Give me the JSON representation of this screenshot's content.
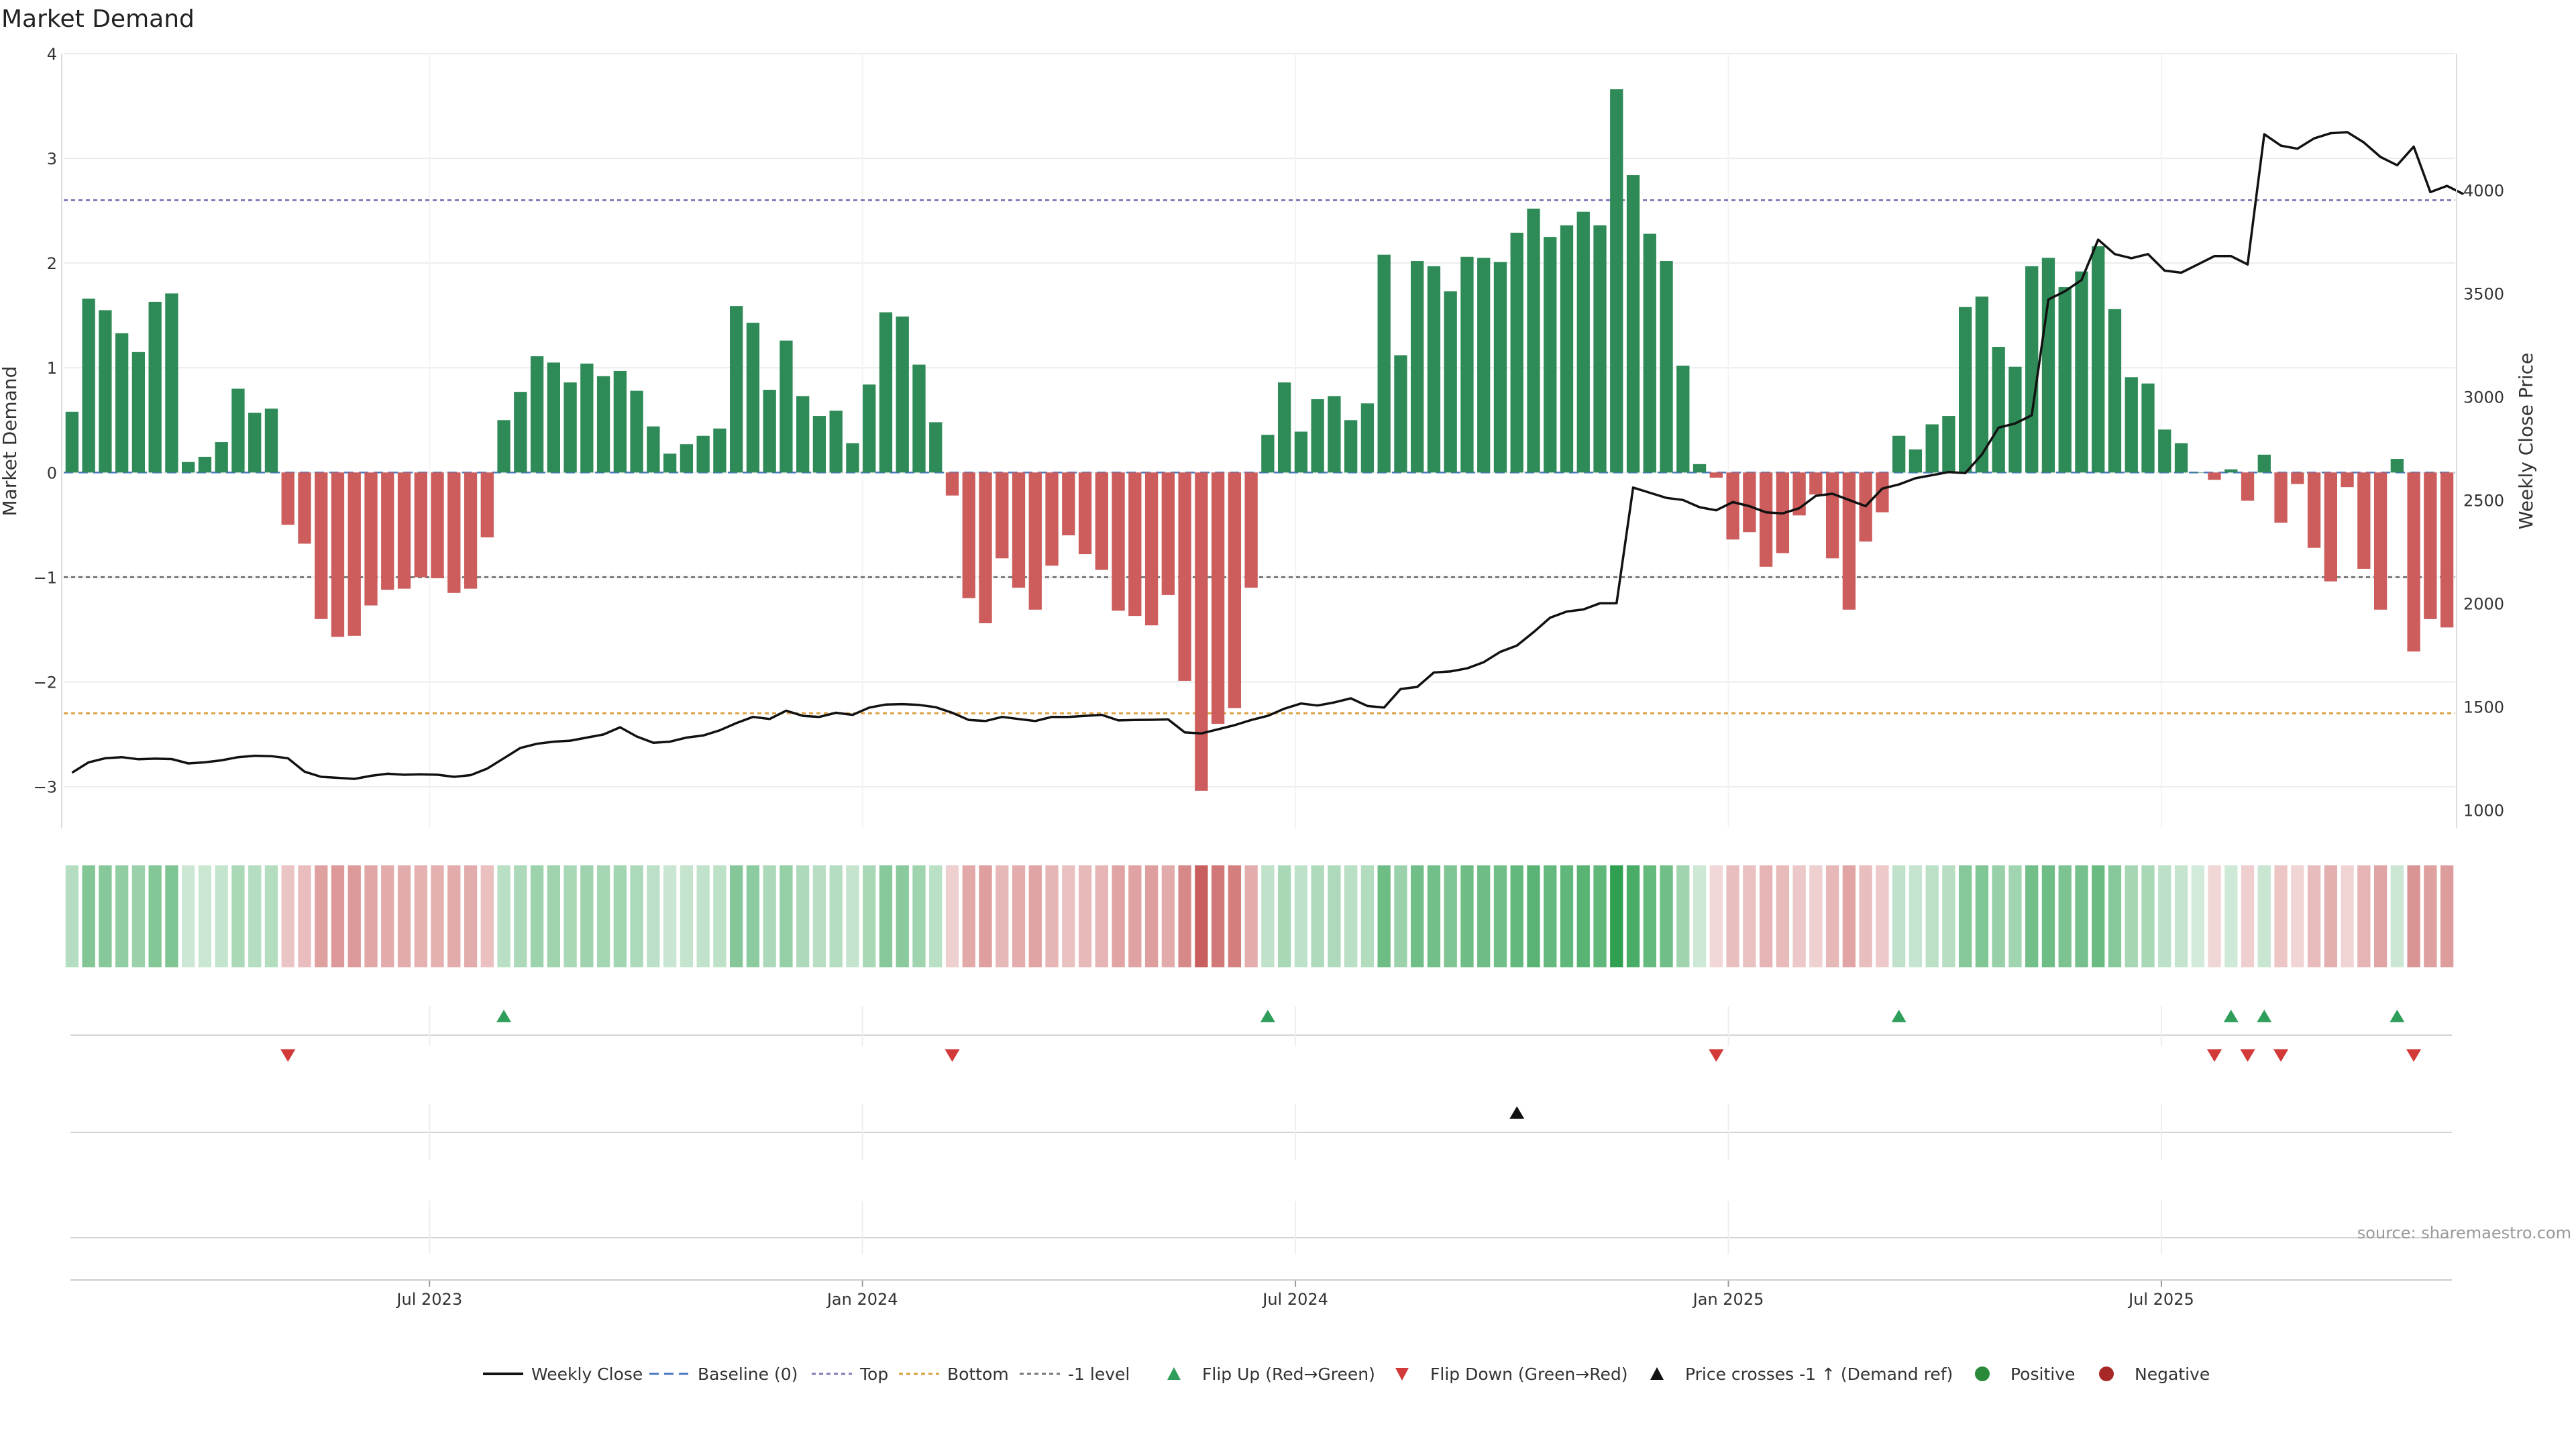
{
  "chart_data": {
    "type": "bar",
    "title": "Market Demand",
    "ylabel": "Market Demand",
    "y2label": "Weekly Close Price",
    "ylim": [
      -3.4,
      4.0
    ],
    "y2lim": [
      910,
      4660
    ],
    "yticks": [
      4,
      3,
      2,
      1,
      0,
      -1,
      -2,
      -3
    ],
    "yticklabels": [
      "4",
      "3",
      "2",
      "1",
      "0",
      "−1",
      "−2",
      "−3"
    ],
    "y2ticks": [
      4000,
      3500,
      3000,
      2500,
      2000,
      1500,
      1000
    ],
    "y2ticklabels": [
      "4000",
      "3500",
      "3000",
      "2500",
      "2000",
      "1500",
      "1000"
    ],
    "xticks": [
      11,
      24,
      37,
      50,
      63
    ],
    "xticklabels": [
      "Jul 2023",
      "Jan 2024",
      "Jul 2024",
      "Jan 2025",
      "Jul 2025"
    ],
    "reference_lines": [
      {
        "name": "Top",
        "value": 2.6,
        "color": "#8a7ab8"
      },
      {
        "name": "-1 level",
        "value": -1.0,
        "color": "#777777"
      },
      {
        "name": "Bottom",
        "value": -2.3,
        "color": "#d9a040"
      }
    ],
    "colors": {
      "positive": "#2e8b57",
      "negative": "#cd5c5c",
      "price_line": "#111111",
      "flip_up": "#2e9e5a",
      "flip_down": "#d23a3a",
      "price_cross": "#111111",
      "positive_dot": "#2a8a3a",
      "negative_dot": "#a82828"
    },
    "series": [
      {
        "name": "Market Demand",
        "values": [
          0.58,
          1.66,
          1.55,
          1.33,
          1.15,
          1.63,
          1.71,
          0.1,
          0.15,
          0.29,
          0.8,
          0.57,
          0.61,
          -0.5,
          -0.68,
          -1.4,
          -1.57,
          -1.56,
          -1.27,
          -1.12,
          -1.11,
          -1.0,
          -1.01,
          -1.15,
          -1.11,
          -0.62,
          0.5,
          0.77,
          1.11,
          1.05,
          0.86,
          1.04,
          0.92,
          0.97,
          0.78,
          0.44,
          0.18,
          0.27,
          0.35,
          0.42,
          1.59,
          1.43,
          0.79,
          1.26,
          0.73,
          0.54,
          0.59,
          0.28,
          0.84,
          1.53,
          1.49,
          1.03,
          0.48,
          -0.22,
          -1.2,
          -1.44,
          -0.82,
          -1.1,
          -1.31,
          -0.89,
          -0.6,
          -0.78,
          -0.93,
          -1.32,
          -1.37,
          -1.46,
          -1.17,
          -1.99,
          -3.04,
          -2.4,
          -2.25,
          -1.1,
          0.36,
          0.86,
          0.39,
          0.7,
          0.73,
          0.5,
          0.66,
          2.08,
          1.12,
          2.02,
          1.97,
          1.73,
          2.06,
          2.05,
          2.01,
          2.29,
          2.52,
          2.25,
          2.36,
          2.49,
          2.36,
          3.66,
          2.84,
          2.28,
          2.02,
          1.02,
          0.08,
          -0.05,
          -0.64,
          -0.57,
          -0.9,
          -0.77,
          -0.41,
          -0.21,
          -0.82,
          -1.31,
          -0.66,
          -0.38,
          0.35,
          0.22,
          0.46,
          0.54,
          1.58,
          1.68,
          1.2,
          1.01,
          1.97,
          2.05,
          1.77,
          1.92,
          2.16,
          1.56,
          0.91,
          0.85,
          0.41,
          0.28,
          0.0,
          -0.07,
          0.03,
          -0.27,
          0.17,
          -0.48,
          -0.11,
          -0.72,
          -1.04,
          -0.14,
          -0.92,
          -1.31,
          0.13,
          -1.71,
          -1.4,
          -1.48
        ]
      },
      {
        "name": "Weekly Close",
        "values": [
          1180,
          1230,
          1250,
          1255,
          1245,
          1248,
          1246,
          1225,
          1230,
          1240,
          1255,
          1262,
          1260,
          1250,
          1185,
          1160,
          1155,
          1150,
          1165,
          1175,
          1170,
          1172,
          1170,
          1160,
          1168,
          1200,
          1250,
          1300,
          1320,
          1330,
          1335,
          1350,
          1365,
          1400,
          1355,
          1325,
          1330,
          1350,
          1360,
          1385,
          1420,
          1450,
          1440,
          1480,
          1455,
          1450,
          1470,
          1460,
          1495,
          1510,
          1512,
          1508,
          1497,
          1470,
          1435,
          1430,
          1450,
          1440,
          1430,
          1450,
          1450,
          1455,
          1460,
          1433,
          1435,
          1436,
          1438,
          1375,
          1370,
          1390,
          1410,
          1435,
          1455,
          1490,
          1515,
          1505,
          1520,
          1540,
          1503,
          1495,
          1585,
          1595,
          1665,
          1670,
          1685,
          1715,
          1765,
          1795,
          1860,
          1930,
          1960,
          1970,
          2000,
          2000,
          2560,
          2535,
          2510,
          2500,
          2465,
          2450,
          2490,
          2470,
          2440,
          2435,
          2460,
          2520,
          2530,
          2500,
          2470,
          2555,
          2575,
          2605,
          2620,
          2635,
          2630,
          2720,
          2850,
          2870,
          2910,
          3470,
          3510,
          3565,
          3760,
          3690,
          3670,
          3690,
          3610,
          3600,
          3640,
          3680,
          3680,
          3640,
          4270,
          4215,
          4200,
          4250,
          4275,
          4280,
          4230,
          4160,
          4120,
          4210,
          3990,
          4020,
          3980
        ]
      }
    ],
    "legend_placement": "bottom",
    "legend": [
      "Weekly Close",
      "Baseline (0)",
      "Top",
      "Bottom",
      "-1 level",
      "Flip Up (Red→Green)",
      "Flip Down (Green→Red)",
      "Price crosses -1 ↑ (Demand ref)",
      "Positive",
      "Negative"
    ],
    "events": {
      "flip_up": [
        26,
        72,
        110,
        130,
        132,
        140
      ],
      "flip_down": [
        13,
        53,
        99,
        129,
        131,
        133,
        141
      ],
      "price_crosses": [
        87
      ]
    },
    "annotation": "source: sharemaestro.com"
  }
}
